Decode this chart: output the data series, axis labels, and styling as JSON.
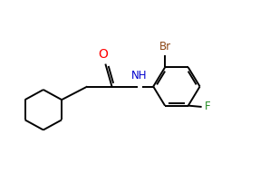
{
  "bg_color": "#ffffff",
  "line_color": "#000000",
  "atom_colors": {
    "O": "#ff0000",
    "N": "#0000cd",
    "Br": "#8B4513",
    "F": "#228B22",
    "C": "#000000"
  },
  "font_size": 8.5,
  "line_width": 1.4,
  "fig_w": 2.87,
  "fig_h": 1.91,
  "dpi": 100,
  "xlim": [
    0,
    10
  ],
  "ylim": [
    0,
    7
  ]
}
